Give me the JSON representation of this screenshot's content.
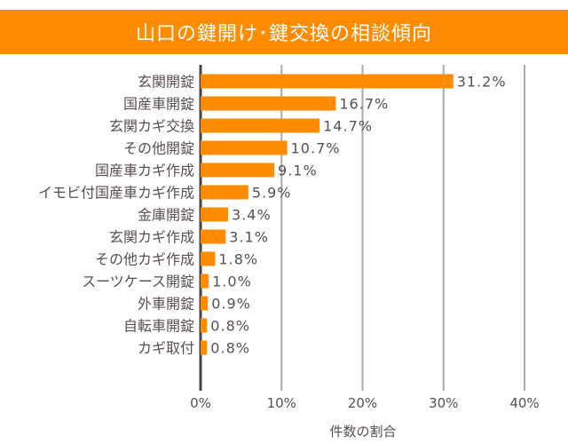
{
  "chart_data": {
    "type": "bar",
    "orientation": "horizontal",
    "title": "山口の鍵開け･鍵交換の相談傾向",
    "xlabel": "件数の割合",
    "ylabel": "",
    "xlim": [
      0,
      40
    ],
    "xticks": [
      "0%",
      "10%",
      "20%",
      "30%",
      "40%"
    ],
    "grid": "vertical",
    "categories": [
      "玄関開錠",
      "国産車開錠",
      "玄関カギ交換",
      "その他開錠",
      "国産車カギ作成",
      "イモビ付国産車カギ作成",
      "金庫開錠",
      "玄関カギ作成",
      "その他カギ作成",
      "スーツケース開錠",
      "外車開錠",
      "自転車開錠",
      "カギ取付"
    ],
    "values": [
      31.2,
      16.7,
      14.7,
      10.7,
      9.1,
      5.9,
      3.4,
      3.1,
      1.8,
      1.0,
      0.9,
      0.8,
      0.8
    ],
    "value_labels": [
      "31.2%",
      "16.7%",
      "14.7%",
      "10.7%",
      "9.1%",
      "5.9%",
      "3.4%",
      "3.1%",
      "1.8%",
      "1.0%",
      "0.9%",
      "0.8%",
      "0.8%"
    ],
    "colors": {
      "bar": "#FF8C00",
      "title_bg": "#FF8C00",
      "grid": "#aaaaaa",
      "axis": "#444444",
      "text": "#5b4e4e"
    }
  }
}
